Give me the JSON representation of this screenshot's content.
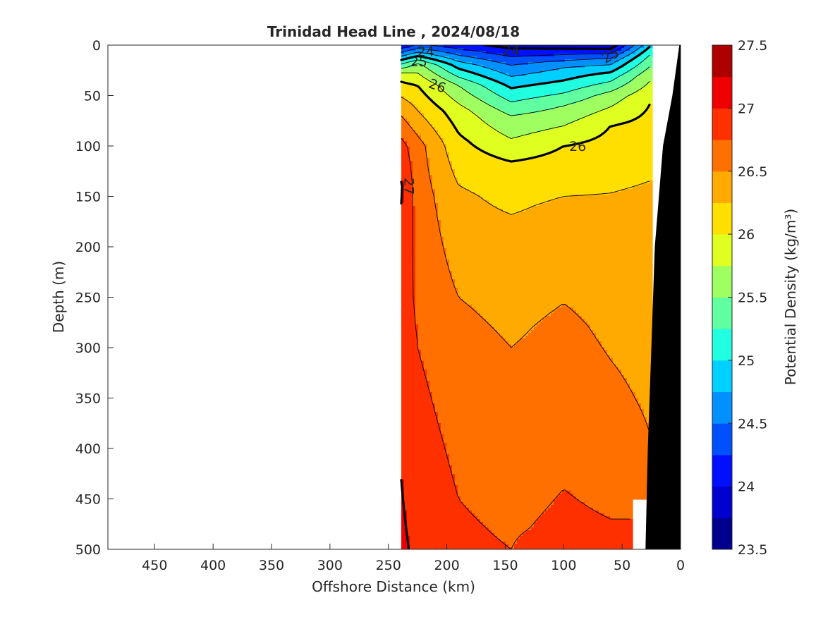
{
  "chart_data": {
    "type": "heatmap",
    "title": "Trinidad Head Line , 2024/08/18",
    "xlabel": "Offshore Distance (km)",
    "ylabel": "Depth (m)",
    "xlim": [
      490,
      0
    ],
    "ylim": [
      500,
      0
    ],
    "x_reversed": true,
    "y_reversed": true,
    "x_ticks": [
      "450",
      "400",
      "350",
      "300",
      "250",
      "200",
      "150",
      "100",
      "50",
      "0"
    ],
    "y_ticks": [
      "0",
      "50",
      "100",
      "150",
      "200",
      "250",
      "300",
      "350",
      "400",
      "450",
      "500"
    ],
    "colorbar": {
      "label": "Potential Density (kg/m³)",
      "range": [
        23.5,
        27.5
      ],
      "step": 0.25,
      "tick_labels": [
        "27.5",
        "27",
        "26.5",
        "26",
        "25.5",
        "25",
        "24.5",
        "24",
        "23.5"
      ],
      "colors": [
        "#00008f",
        "#0000cf",
        "#0010ff",
        "#0050ff",
        "#0090ff",
        "#00d0ff",
        "#20ffe0",
        "#60ff9f",
        "#9fff60",
        "#dfff20",
        "#ffdf00",
        "#ffaa00",
        "#ff7000",
        "#ff3000",
        "#ef0000",
        "#af0000"
      ]
    },
    "contour_labels": [
      "24",
      "24",
      "25",
      "25",
      "26",
      "26",
      "27"
    ],
    "sections": [
      {
        "distance_km": 240,
        "profile": [
          [
            0,
            24.0
          ],
          [
            15,
            25.0
          ],
          [
            30,
            25.9
          ],
          [
            60,
            26.4
          ],
          [
            100,
            26.85
          ],
          [
            140,
            27.05
          ],
          [
            250,
            26.9
          ],
          [
            500,
            27.05
          ]
        ]
      },
      {
        "distance_km": 225,
        "profile": [
          [
            0,
            24.3
          ],
          [
            20,
            25.6
          ],
          [
            40,
            26.0
          ],
          [
            70,
            26.3
          ],
          [
            100,
            26.6
          ],
          [
            250,
            26.7
          ],
          [
            500,
            26.95
          ]
        ]
      },
      {
        "distance_km": 190,
        "profile": [
          [
            0,
            24.1
          ],
          [
            20,
            24.9
          ],
          [
            40,
            25.5
          ],
          [
            65,
            25.85
          ],
          [
            95,
            26.05
          ],
          [
            150,
            26.3
          ],
          [
            250,
            26.5
          ],
          [
            300,
            26.6
          ],
          [
            450,
            26.75
          ],
          [
            500,
            26.8
          ]
        ]
      },
      {
        "distance_km": 145,
        "profile": [
          [
            0,
            23.9
          ],
          [
            20,
            24.5
          ],
          [
            40,
            24.95
          ],
          [
            70,
            25.5
          ],
          [
            120,
            26.05
          ],
          [
            180,
            26.3
          ],
          [
            300,
            26.5
          ],
          [
            500,
            26.75
          ]
        ]
      },
      {
        "distance_km": 100,
        "profile": [
          [
            0,
            23.85
          ],
          [
            20,
            24.7
          ],
          [
            35,
            25.0
          ],
          [
            60,
            25.5
          ],
          [
            100,
            26.0
          ],
          [
            160,
            26.3
          ],
          [
            280,
            26.55
          ],
          [
            480,
            26.8
          ],
          [
            500,
            26.9
          ]
        ]
      },
      {
        "distance_km": 60,
        "profile": [
          [
            0,
            23.8
          ],
          [
            15,
            24.6
          ],
          [
            30,
            25.1
          ],
          [
            50,
            25.6
          ],
          [
            80,
            26.0
          ],
          [
            160,
            26.3
          ],
          [
            350,
            26.55
          ],
          [
            470,
            26.75
          ],
          [
            500,
            26.8
          ]
        ]
      },
      {
        "distance_km": 25,
        "profile": [
          [
            0,
            25.0
          ],
          [
            10,
            25.3
          ],
          [
            30,
            25.7
          ],
          [
            55,
            26.0
          ],
          [
            150,
            26.3
          ],
          [
            390,
            26.5
          ],
          [
            450,
            26.55
          ]
        ]
      }
    ],
    "bathymetry_km_depth": [
      [
        30,
        500
      ],
      [
        28,
        400
      ],
      [
        25,
        300
      ],
      [
        22,
        200
      ],
      [
        15,
        100
      ],
      [
        7,
        50
      ],
      [
        1,
        0
      ]
    ]
  }
}
